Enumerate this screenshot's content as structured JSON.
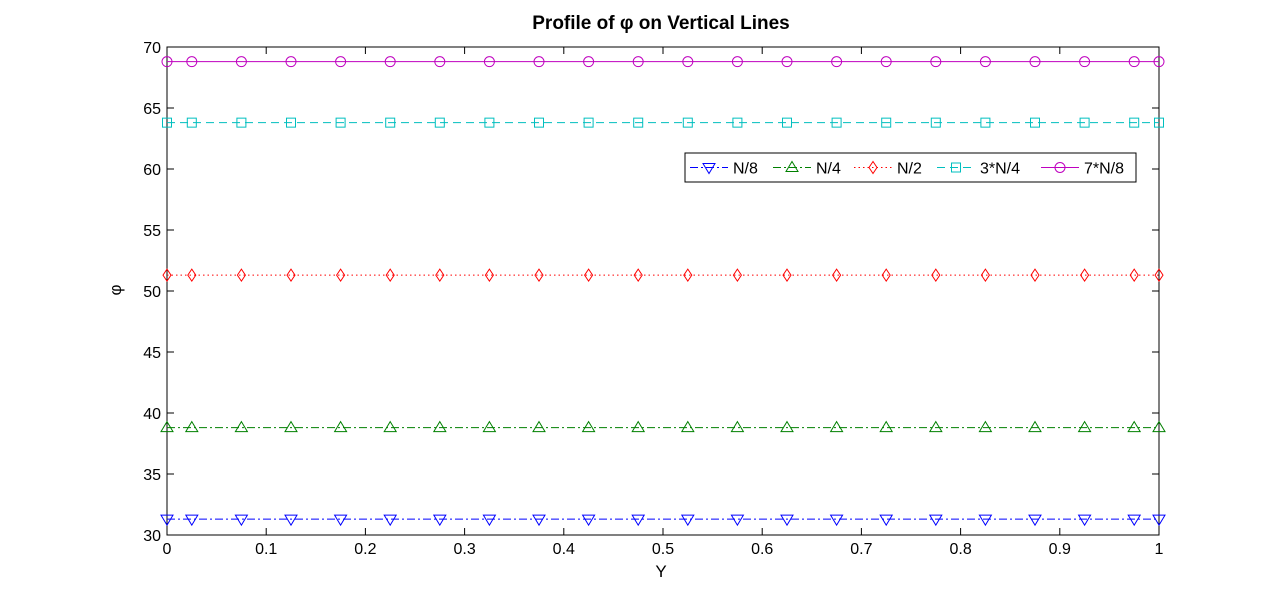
{
  "chart_data": {
    "type": "line",
    "title": "Profile of φ on Vertical Lines",
    "xlabel": "Y",
    "ylabel": "φ",
    "xlim": [
      0,
      1
    ],
    "ylim": [
      30,
      70
    ],
    "xticks": [
      "0",
      "0.1",
      "0.2",
      "0.3",
      "0.4",
      "0.5",
      "0.6",
      "0.7",
      "0.8",
      "0.9",
      "1"
    ],
    "yticks": [
      "30",
      "35",
      "40",
      "45",
      "50",
      "55",
      "60",
      "65",
      "70"
    ],
    "grid": false,
    "legend_position": "upper-right (inside, horizontal)",
    "x": [
      0,
      0.025,
      0.075,
      0.125,
      0.175,
      0.225,
      0.275,
      0.325,
      0.375,
      0.425,
      0.475,
      0.525,
      0.575,
      0.625,
      0.675,
      0.725,
      0.775,
      0.825,
      0.875,
      0.925,
      0.975,
      1
    ],
    "series": [
      {
        "name": "N/8",
        "value": 31.3,
        "color": "#0000ff",
        "line_style": "dash-dot",
        "marker": "triangle-down"
      },
      {
        "name": "N/4",
        "value": 38.8,
        "color": "#008000",
        "line_style": "dash-dot",
        "marker": "triangle-up"
      },
      {
        "name": "N/2",
        "value": 51.3,
        "color": "#ff0000",
        "line_style": "dotted",
        "marker": "diamond"
      },
      {
        "name": "3*N/4",
        "value": 63.8,
        "color": "#00bfbf",
        "line_style": "dashed",
        "marker": "square"
      },
      {
        "name": "7*N/8",
        "value": 68.8,
        "color": "#bf00bf",
        "line_style": "solid",
        "marker": "circle"
      }
    ]
  }
}
